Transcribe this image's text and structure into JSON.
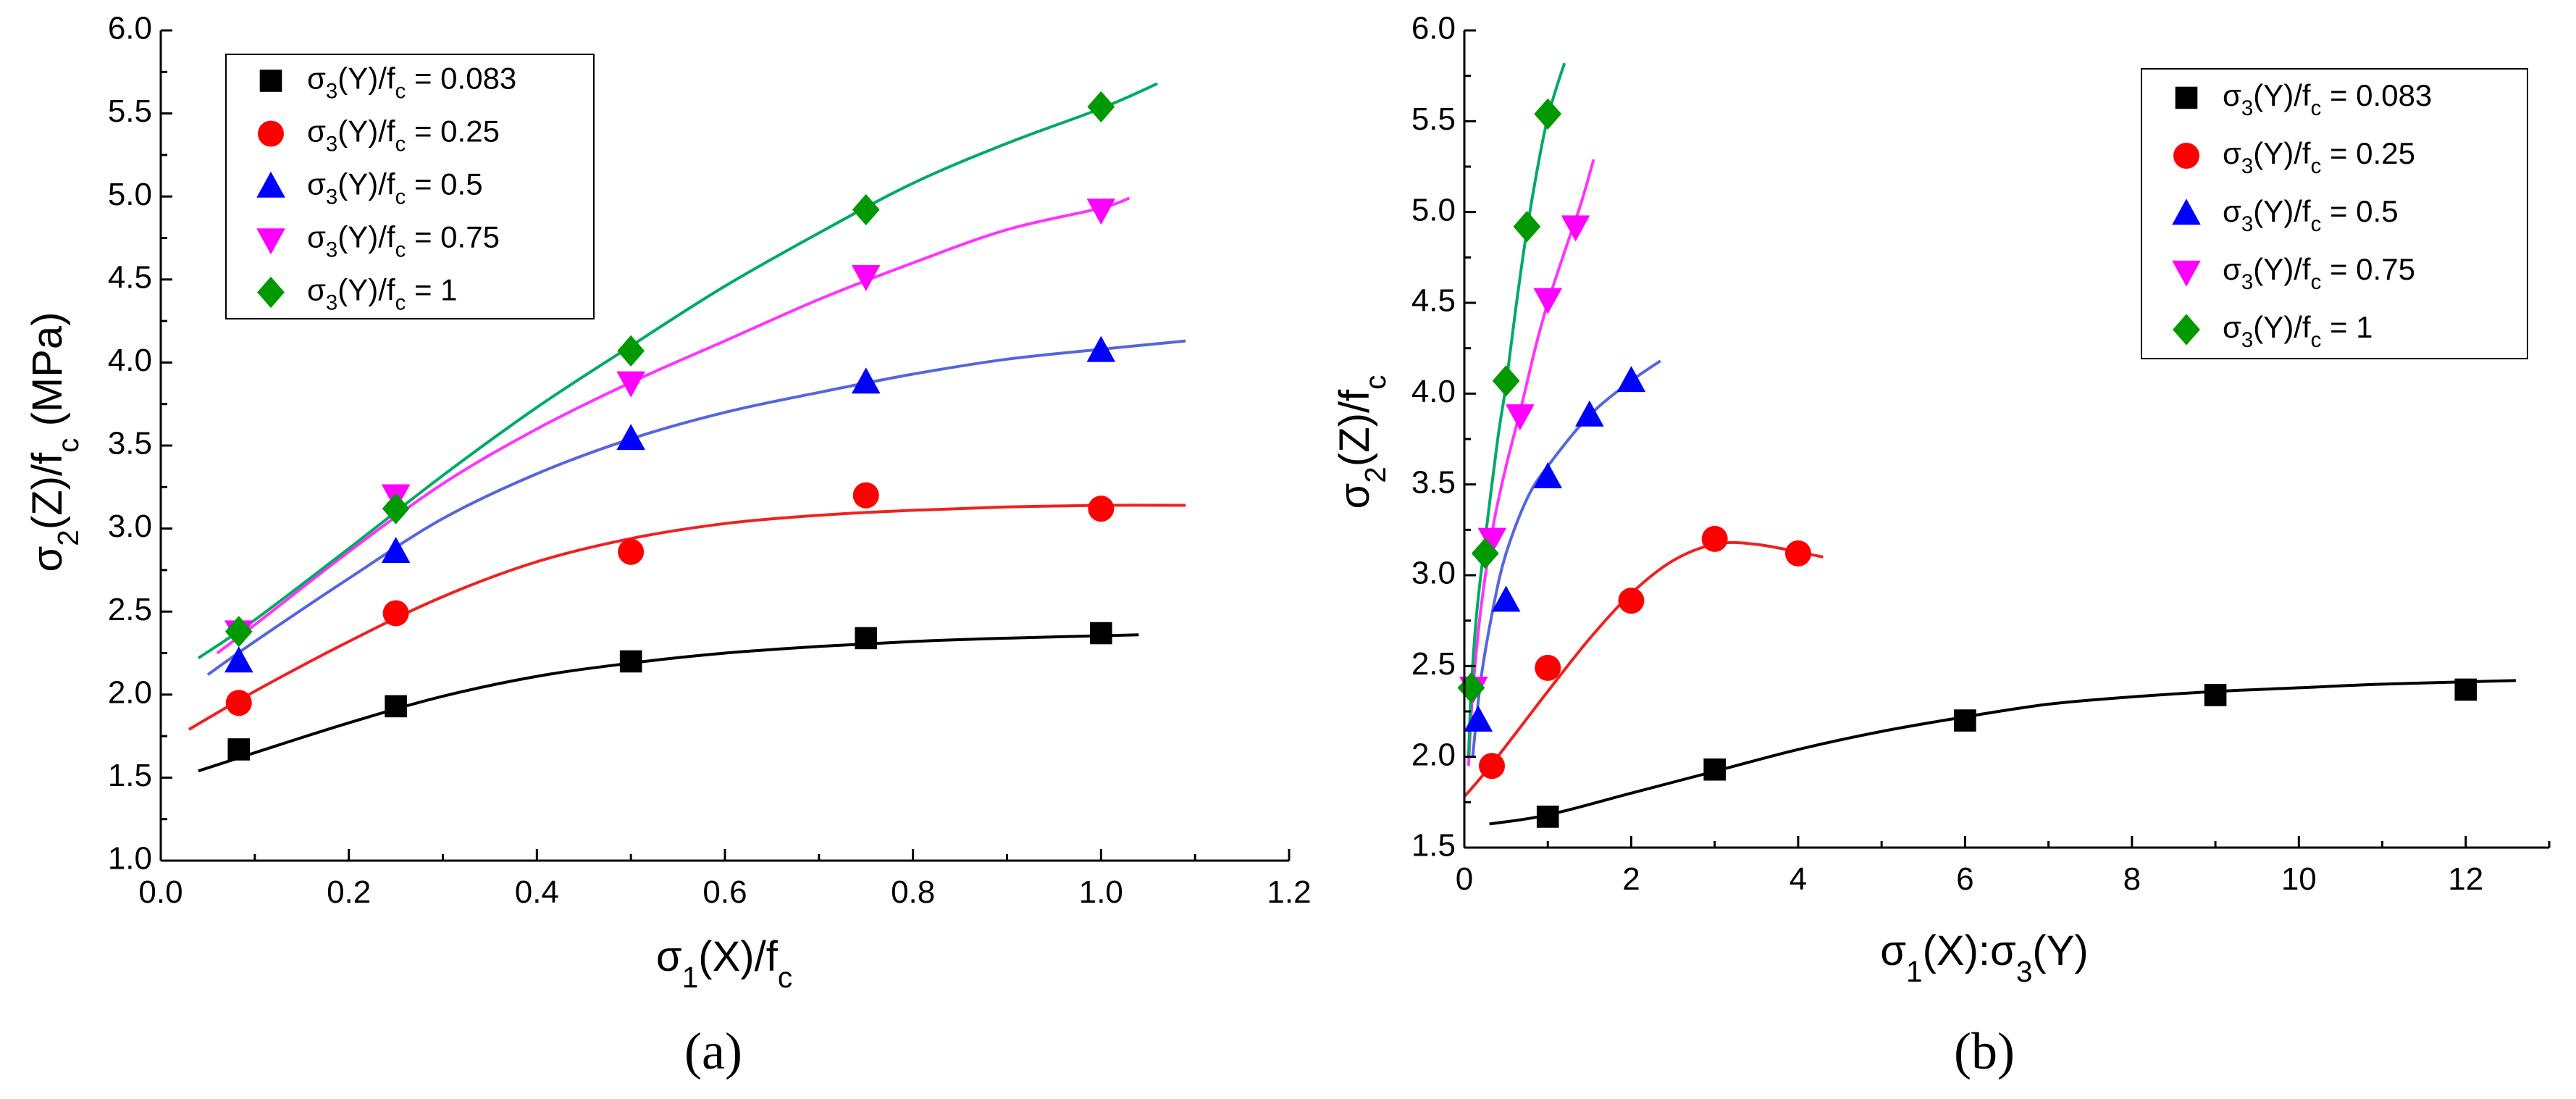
{
  "figure": {
    "panels": [
      {
        "caption": "(a)",
        "ylabel": {
          "base": "σ",
          "sub1": "2",
          "mid": "(Z)/f",
          "sub2": "c",
          "tail": " (MPa)"
        },
        "xlabel": {
          "base": "σ",
          "sub1": "1",
          "mid": "(X)/f",
          "sub2": "c",
          "tail": ""
        }
      },
      {
        "caption": "(b)",
        "ylabel": {
          "base": "σ",
          "sub1": "2",
          "mid": "(Z)/f",
          "sub2": "c",
          "tail": ""
        },
        "xlabel": {
          "base": "σ",
          "sub1": "1",
          "mid": "(X):σ",
          "sub2": "3",
          "tail": "(Y)"
        }
      }
    ]
  },
  "chart_data": [
    {
      "type": "scatter",
      "title": "",
      "caption": "(a)",
      "xlabel": "σ1(X)/fc",
      "ylabel": "σ2(Z)/fc (MPa)",
      "xlim": [
        0.0,
        1.2
      ],
      "ylim": [
        1.0,
        6.0
      ],
      "xticks": [
        "0.0",
        "0.2",
        "0.4",
        "0.6",
        "0.8",
        "1.0",
        "1.2"
      ],
      "yticks": [
        "1.0",
        "1.5",
        "2.0",
        "2.5",
        "3.0",
        "3.5",
        "4.0",
        "4.5",
        "5.0",
        "5.5",
        "6.0"
      ],
      "legend_position": "top-left",
      "series": [
        {
          "name": "σ3(Y)/fc = 0.083",
          "marker": "square",
          "color": "#000000",
          "x": [
            0.083,
            0.25,
            0.5,
            0.75,
            1.0
          ],
          "y": [
            1.67,
            1.93,
            2.2,
            2.34,
            2.37
          ],
          "fit": [
            [
              0.04,
              1.54
            ],
            [
              0.1,
              1.65
            ],
            [
              0.2,
              1.83
            ],
            [
              0.3,
              1.99
            ],
            [
              0.4,
              2.11
            ],
            [
              0.5,
              2.19
            ],
            [
              0.6,
              2.25
            ],
            [
              0.7,
              2.29
            ],
            [
              0.8,
              2.32
            ],
            [
              0.9,
              2.34
            ],
            [
              1.04,
              2.36
            ]
          ]
        },
        {
          "name": "σ3(Y)/fc = 0.25",
          "marker": "circle",
          "color": "#ff0000",
          "x": [
            0.083,
            0.25,
            0.5,
            0.75,
            1.0
          ],
          "y": [
            1.95,
            2.49,
            2.86,
            3.2,
            3.12
          ],
          "fit": [
            [
              0.03,
              1.79
            ],
            [
              0.1,
              2.02
            ],
            [
              0.2,
              2.32
            ],
            [
              0.3,
              2.59
            ],
            [
              0.4,
              2.8
            ],
            [
              0.5,
              2.94
            ],
            [
              0.6,
              3.03
            ],
            [
              0.7,
              3.08
            ],
            [
              0.8,
              3.11
            ],
            [
              0.9,
              3.13
            ],
            [
              1.0,
              3.14
            ],
            [
              1.09,
              3.14
            ]
          ]
        },
        {
          "name": "σ3(Y)/fc = 0.5",
          "marker": "triangle-up",
          "color": "#0000ff",
          "x": [
            0.083,
            0.25,
            0.5,
            0.75,
            1.0
          ],
          "y": [
            2.2,
            2.86,
            3.54,
            3.88,
            4.07
          ],
          "fit": [
            [
              0.05,
              2.12
            ],
            [
              0.1,
              2.32
            ],
            [
              0.2,
              2.7
            ],
            [
              0.3,
              3.06
            ],
            [
              0.4,
              3.33
            ],
            [
              0.5,
              3.54
            ],
            [
              0.6,
              3.7
            ],
            [
              0.7,
              3.82
            ],
            [
              0.8,
              3.93
            ],
            [
              0.9,
              4.02
            ],
            [
              1.0,
              4.08
            ],
            [
              1.09,
              4.13
            ]
          ]
        },
        {
          "name": "σ3(Y)/fc = 0.75",
          "marker": "triangle-down",
          "color": "#ff00ff",
          "x": [
            0.083,
            0.25,
            0.5,
            0.75,
            1.0
          ],
          "y": [
            2.38,
            3.2,
            3.88,
            4.52,
            4.92
          ],
          "fit": [
            [
              0.06,
              2.25
            ],
            [
              0.1,
              2.42
            ],
            [
              0.2,
              2.86
            ],
            [
              0.3,
              3.27
            ],
            [
              0.4,
              3.6
            ],
            [
              0.5,
              3.88
            ],
            [
              0.6,
              4.13
            ],
            [
              0.7,
              4.38
            ],
            [
              0.8,
              4.6
            ],
            [
              0.9,
              4.8
            ],
            [
              1.0,
              4.93
            ],
            [
              1.03,
              4.99
            ]
          ]
        },
        {
          "name": "σ3(Y)/fc = 1",
          "marker": "diamond",
          "color": "#009900",
          "x": [
            0.083,
            0.25,
            0.5,
            0.75,
            1.0
          ],
          "y": [
            2.38,
            3.12,
            4.07,
            4.92,
            5.54
          ],
          "fit": [
            [
              0.04,
              2.22
            ],
            [
              0.1,
              2.45
            ],
            [
              0.2,
              2.88
            ],
            [
              0.3,
              3.32
            ],
            [
              0.4,
              3.73
            ],
            [
              0.5,
              4.1
            ],
            [
              0.6,
              4.46
            ],
            [
              0.7,
              4.78
            ],
            [
              0.8,
              5.08
            ],
            [
              0.9,
              5.32
            ],
            [
              1.0,
              5.53
            ],
            [
              1.06,
              5.68
            ]
          ]
        }
      ]
    },
    {
      "type": "scatter",
      "title": "",
      "caption": "(b)",
      "xlabel": "σ1(X):σ3(Y)",
      "ylabel": "σ2(Z)/fc",
      "xlim": [
        0,
        13
      ],
      "ylim": [
        1.5,
        6.0
      ],
      "xticks": [
        "0",
        "2",
        "4",
        "6",
        "8",
        "10",
        "12"
      ],
      "yticks": [
        "1.5",
        "2.0",
        "2.5",
        "3.0",
        "3.5",
        "4.0",
        "4.5",
        "5.0",
        "5.5",
        "6.0"
      ],
      "legend_position": "top-right",
      "series": [
        {
          "name": "σ3(Y)/fc = 0.083",
          "marker": "square",
          "color": "#000000",
          "x": [
            1,
            3,
            6,
            9,
            12
          ],
          "y": [
            1.67,
            1.93,
            2.2,
            2.34,
            2.37
          ],
          "fit": [
            [
              0.3,
              1.63
            ],
            [
              1,
              1.68
            ],
            [
              2,
              1.8
            ],
            [
              3,
              1.92
            ],
            [
              4,
              2.04
            ],
            [
              5,
              2.14
            ],
            [
              6,
              2.22
            ],
            [
              7,
              2.29
            ],
            [
              8,
              2.33
            ],
            [
              9,
              2.36
            ],
            [
              10,
              2.38
            ],
            [
              11,
              2.4
            ],
            [
              12.6,
              2.42
            ]
          ]
        },
        {
          "name": "σ3(Y)/fc = 0.25",
          "marker": "circle",
          "color": "#ff0000",
          "x": [
            0.33,
            1,
            2,
            3,
            4
          ],
          "y": [
            1.95,
            2.49,
            2.86,
            3.2,
            3.12
          ],
          "fit": [
            [
              0.0,
              1.78
            ],
            [
              0.33,
              1.96
            ],
            [
              1,
              2.36
            ],
            [
              1.5,
              2.65
            ],
            [
              2,
              2.9
            ],
            [
              2.5,
              3.08
            ],
            [
              3,
              3.17
            ],
            [
              3.5,
              3.17
            ],
            [
              4.3,
              3.1
            ]
          ]
        },
        {
          "name": "σ3(Y)/fc = 0.5",
          "marker": "triangle-up",
          "color": "#0000ff",
          "x": [
            0.167,
            0.5,
            1,
            1.5,
            2
          ],
          "y": [
            2.2,
            2.86,
            3.54,
            3.88,
            4.07
          ],
          "fit": [
            [
              0.1,
              2.0
            ],
            [
              0.2,
              2.43
            ],
            [
              0.35,
              2.83
            ],
            [
              0.5,
              3.12
            ],
            [
              0.75,
              3.42
            ],
            [
              1,
              3.6
            ],
            [
              1.5,
              3.88
            ],
            [
              2,
              4.07
            ],
            [
              2.35,
              4.18
            ]
          ]
        },
        {
          "name": "σ3(Y)/fc = 0.75",
          "marker": "triangle-down",
          "color": "#ff00ff",
          "x": [
            0.111,
            0.333,
            0.667,
            1,
            1.333
          ],
          "y": [
            2.38,
            3.2,
            3.88,
            4.52,
            4.92
          ],
          "fit": [
            [
              0.05,
              1.95
            ],
            [
              0.1,
              2.35
            ],
            [
              0.2,
              2.82
            ],
            [
              0.35,
              3.28
            ],
            [
              0.5,
              3.6
            ],
            [
              0.667,
              3.9
            ],
            [
              0.85,
              4.25
            ],
            [
              1,
              4.5
            ],
            [
              1.2,
              4.78
            ],
            [
              1.4,
              5.05
            ],
            [
              1.55,
              5.29
            ]
          ]
        },
        {
          "name": "σ3(Y)/fc = 1",
          "marker": "diamond",
          "color": "#009900",
          "x": [
            0.083,
            0.25,
            0.5,
            0.75,
            1
          ],
          "y": [
            2.38,
            3.12,
            4.07,
            4.92,
            5.54
          ],
          "fit": [
            [
              0.05,
              2.0
            ],
            [
              0.083,
              2.38
            ],
            [
              0.15,
              2.8
            ],
            [
              0.25,
              3.2
            ],
            [
              0.4,
              3.75
            ],
            [
              0.5,
              4.05
            ],
            [
              0.62,
              4.48
            ],
            [
              0.75,
              4.9
            ],
            [
              0.9,
              5.3
            ],
            [
              1,
              5.52
            ],
            [
              1.1,
              5.68
            ],
            [
              1.2,
              5.82
            ]
          ]
        }
      ]
    }
  ]
}
